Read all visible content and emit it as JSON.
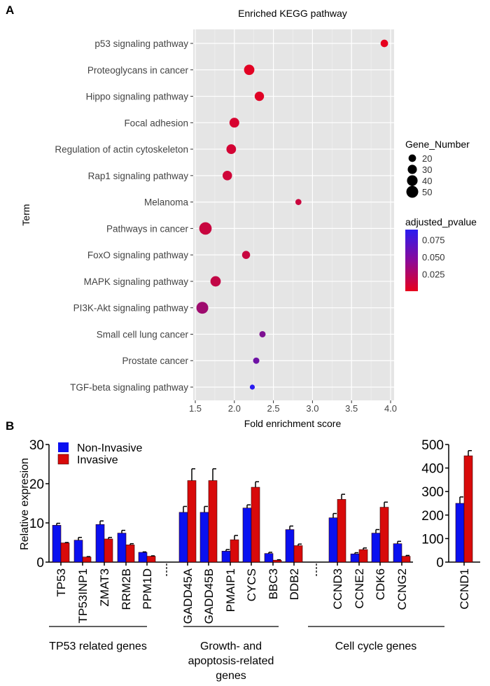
{
  "chart_data": [
    {
      "panel_label": "A",
      "type": "scatter",
      "title": "Enriched KEGG pathway",
      "xlabel": "Fold enrichment score",
      "ylabel": "Term",
      "xlim": [
        1.5,
        4.0
      ],
      "xticks": [
        "1.5",
        "2.0",
        "2.5",
        "3.0",
        "3.5",
        "4.0"
      ],
      "grid": true,
      "legend_placement": "right",
      "size_legend": {
        "title": "Gene_Number",
        "values": [
          20,
          30,
          40,
          50
        ]
      },
      "color_legend": {
        "title": "adjusted_pvalue",
        "ticks": [
          "0.075",
          "0.050",
          "0.025"
        ],
        "low_color": "#e8001c",
        "high_color": "#2a1cf0",
        "range": [
          0,
          0.09
        ]
      },
      "points": [
        {
          "term": "p53 signaling pathway",
          "x": 3.92,
          "gene_number": 20,
          "padj": 0.001
        },
        {
          "term": "Proteoglycans in cancer",
          "x": 2.19,
          "gene_number": 38,
          "padj": 0.003
        },
        {
          "term": "Hippo signaling pathway",
          "x": 2.32,
          "gene_number": 31,
          "padj": 0.004
        },
        {
          "term": "Focal adhesion",
          "x": 2.0,
          "gene_number": 34,
          "padj": 0.008
        },
        {
          "term": "Regulation of actin cytoskeleton",
          "x": 1.96,
          "gene_number": 33,
          "padj": 0.01
        },
        {
          "term": "Rap1 signaling pathway",
          "x": 1.91,
          "gene_number": 32,
          "padj": 0.012
        },
        {
          "term": "Melanoma",
          "x": 2.82,
          "gene_number": 13,
          "padj": 0.014
        },
        {
          "term": "Pathways in cancer",
          "x": 1.63,
          "gene_number": 55,
          "padj": 0.015
        },
        {
          "term": "FoxO signaling pathway",
          "x": 2.15,
          "gene_number": 23,
          "padj": 0.015
        },
        {
          "term": "MAPK signaling pathway",
          "x": 1.76,
          "gene_number": 38,
          "padj": 0.018
        },
        {
          "term": "PI3K-Akt signaling pathway",
          "x": 1.59,
          "gene_number": 50,
          "padj": 0.035
        },
        {
          "term": "Small cell lung cancer",
          "x": 2.36,
          "gene_number": 14,
          "padj": 0.05
        },
        {
          "term": "Prostate cancer",
          "x": 2.28,
          "gene_number": 14,
          "padj": 0.058
        },
        {
          "term": "TGF-beta signaling pathway",
          "x": 2.23,
          "gene_number": 9,
          "padj": 0.09
        }
      ]
    },
    {
      "panel_label": "B",
      "type": "bar",
      "ylabel": "Relative expresion",
      "ylim": [
        0,
        30
      ],
      "yticks": [
        "0",
        "10",
        "20",
        "30"
      ],
      "legend_placement": "top-left",
      "series": [
        {
          "name": "Non-Invasive",
          "color": "#0a10f0"
        },
        {
          "name": "Invasive",
          "color": "#d80a0a"
        }
      ],
      "categories": [
        "TP53",
        "TP53INP1",
        "ZMAT3",
        "RRM2B",
        "PPM1D",
        "GADD45A",
        "GADD45B",
        "PMAIP1",
        "CYCS",
        "BBC3",
        "DDB2",
        "CCND3",
        "CCNE2",
        "CDK6",
        "CCNG2"
      ],
      "non_invasive": [
        9.4,
        5.6,
        9.6,
        7.4,
        2.5,
        12.7,
        12.7,
        2.8,
        13.8,
        2.2,
        8.3,
        11.3,
        2.1,
        7.4,
        4.7
      ],
      "non_invasive_err": [
        0.5,
        0.7,
        0.9,
        0.7,
        0.1,
        1.5,
        1.5,
        0.4,
        0.8,
        0.3,
        0.9,
        1.1,
        0.3,
        0.9,
        0.6
      ],
      "invasive": [
        4.9,
        1.3,
        5.9,
        4.4,
        1.5,
        20.8,
        20.8,
        5.7,
        19.1,
        0.5,
        4.2,
        16.0,
        3.2,
        14.0,
        1.5
      ],
      "invasive_err": [
        0.1,
        0.1,
        0.4,
        0.3,
        0.1,
        3.0,
        3.0,
        1.1,
        1.4,
        0.1,
        0.4,
        1.3,
        0.4,
        1.3,
        0.2
      ],
      "groups": [
        {
          "label": [
            "TP53 related genes"
          ]
        },
        {
          "label": [
            "Growth- and",
            "apoptosis-related",
            "genes"
          ]
        },
        {
          "label": [
            "Cell cycle genes"
          ]
        }
      ]
    },
    {
      "type": "bar",
      "ylim": [
        0,
        500
      ],
      "yticks": [
        "0",
        "100",
        "200",
        "300",
        "400",
        "500"
      ],
      "categories": [
        "CCND1"
      ],
      "non_invasive": [
        250
      ],
      "non_invasive_err": [
        27
      ],
      "invasive": [
        452
      ],
      "invasive_err": [
        22
      ]
    }
  ]
}
